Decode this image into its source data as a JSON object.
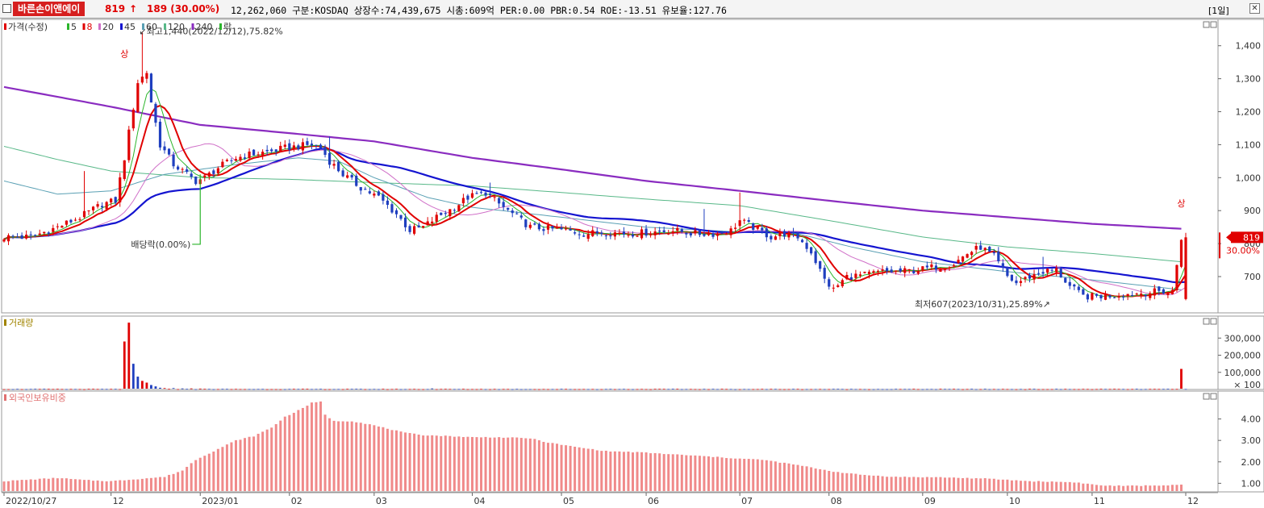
{
  "header": {
    "name": "바른손이앤에이",
    "price": "819",
    "arrow": "↑",
    "change": "189 (30.00%)",
    "rest": "12,262,060  구분:KOSDAQ 상장수:74,439,675 시총:609억 PER:0.00 PBR:0.54 ROE:-13.51 유보율:127.76",
    "period": "[1일]",
    "close_symbol": "✕"
  },
  "colors": {
    "up": "#e00000",
    "down": "#1f3fbf",
    "ma5": "#2bb52b",
    "ma8": "#e00000",
    "ma20": "#d070c8",
    "ma45": "#1414d0",
    "ma60": "#5aa0b4",
    "ma120": "#58b888",
    "ma240": "#8a2cc0",
    "foreign_bar": "#f08a8a",
    "volume_label": "#a08400",
    "foreign_label": "#e07070"
  },
  "chart_data": [
    {
      "type": "candlestick",
      "panel": "price",
      "legend": [
        {
          "label": "가격(수정)",
          "color_key": "up"
        },
        {
          "label": "5",
          "color_key": "ma5"
        },
        {
          "label": "8",
          "color_key": "ma8"
        },
        {
          "label": "20",
          "color_key": "ma20"
        },
        {
          "label": "45",
          "color_key": "ma45"
        },
        {
          "label": "60",
          "color_key": "ma60"
        },
        {
          "label": "120",
          "color_key": "ma120"
        },
        {
          "label": "240",
          "color_key": "ma240"
        },
        {
          "label": "락",
          "color_key": "ma5"
        }
      ],
      "y_ticks": [
        700,
        800,
        900,
        1000,
        1100,
        1200,
        1300,
        1400
      ],
      "y_tick_labels": [
        "700",
        "800",
        "900",
        "1,000",
        "1,100",
        "1,200",
        "1,300",
        "1,400"
      ],
      "ylim": [
        590,
        1480
      ],
      "x_labels": [
        {
          "label": "2022/10/27",
          "index": 0
        },
        {
          "label": "12",
          "index": 24
        },
        {
          "label": "2023/01",
          "index": 44
        },
        {
          "label": "02",
          "index": 64
        },
        {
          "label": "03",
          "index": 83
        },
        {
          "label": "04",
          "index": 105
        },
        {
          "label": "05",
          "index": 125
        },
        {
          "label": "06",
          "index": 144
        },
        {
          "label": "07",
          "index": 165
        },
        {
          "label": "08",
          "index": 185
        },
        {
          "label": "09",
          "index": 206
        },
        {
          "label": "10",
          "index": 225
        },
        {
          "label": "11",
          "index": 244
        },
        {
          "label": "12",
          "index": 265
        }
      ],
      "anchors": [
        [
          0,
          820
        ],
        [
          6,
          820
        ],
        [
          12,
          850
        ],
        [
          17,
          880
        ],
        [
          22,
          920
        ],
        [
          25,
          930
        ],
        [
          27,
          1060
        ],
        [
          30,
          1290
        ],
        [
          32,
          1320
        ],
        [
          33,
          1230
        ],
        [
          35,
          1100
        ],
        [
          38,
          1040
        ],
        [
          41,
          1010
        ],
        [
          43,
          990
        ],
        [
          45,
          1000
        ],
        [
          48,
          1030
        ],
        [
          52,
          1060
        ],
        [
          55,
          1070
        ],
        [
          60,
          1080
        ],
        [
          63,
          1090
        ],
        [
          66,
          1095
        ],
        [
          69,
          1100
        ],
        [
          71,
          1090
        ],
        [
          73,
          1050
        ],
        [
          76,
          1010
        ],
        [
          80,
          970
        ],
        [
          84,
          940
        ],
        [
          88,
          890
        ],
        [
          91,
          840
        ],
        [
          94,
          850
        ],
        [
          97,
          880
        ],
        [
          101,
          910
        ],
        [
          104,
          940
        ],
        [
          108,
          955
        ],
        [
          111,
          920
        ],
        [
          115,
          880
        ],
        [
          118,
          850
        ],
        [
          122,
          845
        ],
        [
          126,
          840
        ],
        [
          130,
          830
        ],
        [
          135,
          835
        ],
        [
          140,
          830
        ],
        [
          145,
          835
        ],
        [
          150,
          840
        ],
        [
          155,
          830
        ],
        [
          160,
          830
        ],
        [
          163,
          840
        ],
        [
          165,
          870
        ],
        [
          168,
          850
        ],
        [
          172,
          820
        ],
        [
          175,
          830
        ],
        [
          178,
          820
        ],
        [
          181,
          775
        ],
        [
          184,
          690
        ],
        [
          186,
          660
        ],
        [
          189,
          700
        ],
        [
          193,
          705
        ],
        [
          197,
          715
        ],
        [
          201,
          715
        ],
        [
          205,
          720
        ],
        [
          209,
          730
        ],
        [
          213,
          740
        ],
        [
          216,
          770
        ],
        [
          219,
          790
        ],
        [
          222,
          760
        ],
        [
          225,
          700
        ],
        [
          227,
          680
        ],
        [
          230,
          700
        ],
        [
          233,
          715
        ],
        [
          236,
          720
        ],
        [
          239,
          670
        ],
        [
          242,
          640
        ],
        [
          245,
          640
        ],
        [
          250,
          645
        ],
        [
          255,
          650
        ],
        [
          259,
          655
        ],
        [
          262,
          655
        ],
        [
          264,
          819
        ]
      ],
      "spikes": [
        {
          "index": 18,
          "high": 1020
        },
        {
          "index": 31,
          "high": 1440
        },
        {
          "index": 36,
          "high": 1110
        },
        {
          "index": 42,
          "high": 1020
        },
        {
          "index": 73,
          "high": 1125
        },
        {
          "index": 109,
          "high": 985
        },
        {
          "index": 157,
          "high": 905
        },
        {
          "index": 165,
          "high": 955
        },
        {
          "index": 233,
          "high": 760
        }
      ],
      "ma_lines": {
        "ma240": [
          [
            0,
            1275
          ],
          [
            24,
            1215
          ],
          [
            44,
            1160
          ],
          [
            64,
            1135
          ],
          [
            83,
            1110
          ],
          [
            105,
            1060
          ],
          [
            125,
            1025
          ],
          [
            144,
            990
          ],
          [
            165,
            960
          ],
          [
            185,
            930
          ],
          [
            206,
            900
          ],
          [
            225,
            880
          ],
          [
            244,
            860
          ],
          [
            264,
            845
          ]
        ],
        "ma120": [
          [
            0,
            1095
          ],
          [
            12,
            1055
          ],
          [
            24,
            1020
          ],
          [
            44,
            1000
          ],
          [
            64,
            995
          ],
          [
            83,
            985
          ],
          [
            105,
            975
          ],
          [
            125,
            955
          ],
          [
            144,
            935
          ],
          [
            165,
            915
          ],
          [
            185,
            870
          ],
          [
            206,
            820
          ],
          [
            225,
            790
          ],
          [
            244,
            770
          ],
          [
            264,
            745
          ]
        ],
        "ma60": [
          [
            0,
            990
          ],
          [
            12,
            950
          ],
          [
            24,
            960
          ],
          [
            36,
            1010
          ],
          [
            52,
            1040
          ],
          [
            66,
            1060
          ],
          [
            75,
            1050
          ],
          [
            83,
            1000
          ],
          [
            95,
            940
          ],
          [
            105,
            910
          ],
          [
            125,
            880
          ],
          [
            144,
            850
          ],
          [
            165,
            835
          ],
          [
            178,
            830
          ],
          [
            190,
            790
          ],
          [
            206,
            745
          ],
          [
            225,
            715
          ],
          [
            244,
            690
          ],
          [
            264,
            660
          ]
        ]
      },
      "annotations": [
        {
          "text": "최고1,440(2022/12/12),75.82%",
          "index": 31,
          "value": 1440
        },
        {
          "text": "최저607(2023/10/31),25.89%",
          "index": 244,
          "value": 607
        },
        {
          "text": "배당락(0.00%)",
          "index": 44,
          "value": 820
        },
        {
          "text": "상",
          "index": 27,
          "value": 1205
        },
        {
          "text": "상",
          "index": 264,
          "value": 830
        }
      ],
      "current_price": {
        "value": 819,
        "label": "819",
        "change_label": "30.00%"
      }
    },
    {
      "type": "bar",
      "panel": "volume",
      "legend": "거래량",
      "y_ticks": [
        100000,
        200000,
        300000
      ],
      "y_tick_labels": [
        "100,000",
        "200,000",
        "300,000"
      ],
      "unit_label": "× 100",
      "ylim": [
        0,
        400000
      ],
      "bars": [
        [
          27,
          280000
        ],
        [
          28,
          390000
        ],
        [
          29,
          150000
        ],
        [
          30,
          75000
        ],
        [
          31,
          50000
        ],
        [
          32,
          40000
        ],
        [
          33,
          26000
        ],
        [
          34,
          18000
        ],
        [
          35,
          10000
        ],
        [
          36,
          8000
        ],
        [
          38,
          8000
        ],
        [
          40,
          6000
        ],
        [
          42,
          6000
        ],
        [
          44,
          5000
        ],
        [
          96,
          6000
        ],
        [
          264,
          120000
        ]
      ],
      "baseline_volume": 2500
    },
    {
      "type": "bar",
      "panel": "foreign",
      "legend": "외국인보유비중",
      "y_ticks": [
        1.0,
        2.0,
        3.0,
        4.0
      ],
      "y_tick_labels": [
        "1.00",
        "2.00",
        "3.00",
        "4.00"
      ],
      "ylim": [
        0.6,
        5.0
      ],
      "anchors": [
        [
          0,
          1.1
        ],
        [
          12,
          1.25
        ],
        [
          18,
          1.15
        ],
        [
          24,
          1.1
        ],
        [
          30,
          1.2
        ],
        [
          36,
          1.3
        ],
        [
          40,
          1.6
        ],
        [
          43,
          2.1
        ],
        [
          48,
          2.6
        ],
        [
          52,
          3.0
        ],
        [
          56,
          3.2
        ],
        [
          60,
          3.6
        ],
        [
          63,
          4.1
        ],
        [
          66,
          4.4
        ],
        [
          69,
          4.75
        ],
        [
          71,
          4.8
        ],
        [
          72,
          4.2
        ],
        [
          74,
          3.9
        ],
        [
          78,
          3.9
        ],
        [
          82,
          3.75
        ],
        [
          86,
          3.55
        ],
        [
          90,
          3.35
        ],
        [
          94,
          3.25
        ],
        [
          100,
          3.2
        ],
        [
          105,
          3.15
        ],
        [
          110,
          3.15
        ],
        [
          118,
          3.1
        ],
        [
          122,
          2.9
        ],
        [
          128,
          2.7
        ],
        [
          135,
          2.5
        ],
        [
          142,
          2.45
        ],
        [
          150,
          2.35
        ],
        [
          158,
          2.25
        ],
        [
          165,
          2.15
        ],
        [
          170,
          2.1
        ],
        [
          178,
          1.85
        ],
        [
          186,
          1.55
        ],
        [
          192,
          1.4
        ],
        [
          200,
          1.3
        ],
        [
          210,
          1.28
        ],
        [
          220,
          1.22
        ],
        [
          230,
          1.1
        ],
        [
          240,
          1.05
        ],
        [
          246,
          0.9
        ],
        [
          252,
          0.88
        ],
        [
          258,
          0.9
        ],
        [
          264,
          0.92
        ]
      ]
    }
  ]
}
